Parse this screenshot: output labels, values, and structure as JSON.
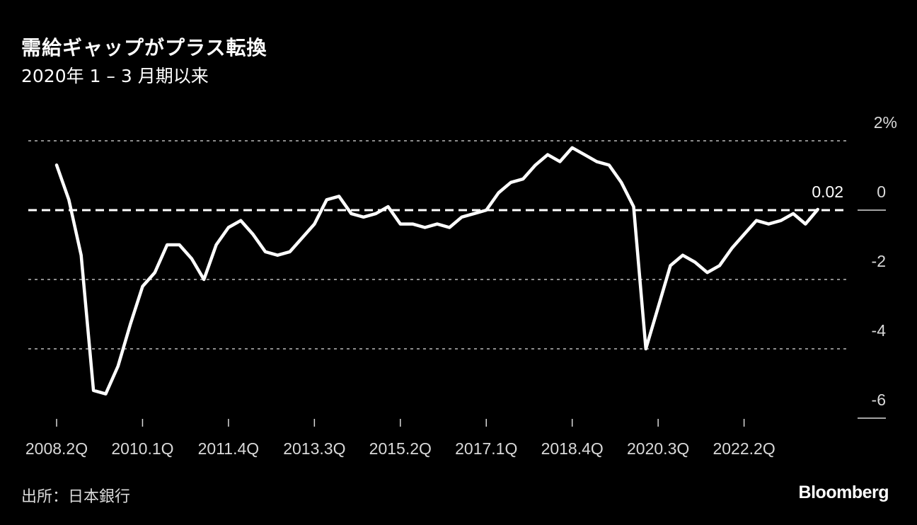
{
  "header": {
    "title": "需給ギャップがプラス転換",
    "subtitle": "2020年 1 – 3 月期以来"
  },
  "footer": {
    "source": "出所：日本銀行",
    "brand": "Bloomberg"
  },
  "colors": {
    "background": "#000000",
    "line": "#ffffff",
    "grid": "#8c8c8c",
    "label": "#d9d9d9"
  },
  "chart_data": {
    "type": "line",
    "title": "需給ギャップがプラス転換",
    "subtitle": "2020年 1 – 3 月期以来",
    "xlabel": "",
    "ylabel": "%",
    "ylim": [
      -6,
      2
    ],
    "yticks": [
      2,
      0,
      -2,
      -4,
      -6
    ],
    "ytick_labels": [
      "2%",
      "0",
      "-2",
      "-4",
      "-6"
    ],
    "xtick_labels": [
      "2008.2Q",
      "2010.1Q",
      "2011.4Q",
      "2013.3Q",
      "2015.2Q",
      "2017.1Q",
      "2018.4Q",
      "2020.3Q",
      "2022.2Q"
    ],
    "grid": true,
    "zero_line": "dashed",
    "annotation": {
      "label": "0.02",
      "value": 0.02,
      "x": "2023.4Q"
    },
    "series": [
      {
        "name": "需給ギャップ",
        "x": [
          "2008.2Q",
          "2008.3Q",
          "2008.4Q",
          "2009.1Q",
          "2009.2Q",
          "2009.3Q",
          "2009.4Q",
          "2010.1Q",
          "2010.2Q",
          "2010.3Q",
          "2010.4Q",
          "2011.1Q",
          "2011.2Q",
          "2011.3Q",
          "2011.4Q",
          "2012.1Q",
          "2012.2Q",
          "2012.3Q",
          "2012.4Q",
          "2013.1Q",
          "2013.2Q",
          "2013.3Q",
          "2013.4Q",
          "2014.1Q",
          "2014.2Q",
          "2014.3Q",
          "2014.4Q",
          "2015.1Q",
          "2015.2Q",
          "2015.3Q",
          "2015.4Q",
          "2016.1Q",
          "2016.2Q",
          "2016.3Q",
          "2016.4Q",
          "2017.1Q",
          "2017.2Q",
          "2017.3Q",
          "2017.4Q",
          "2018.1Q",
          "2018.2Q",
          "2018.3Q",
          "2018.4Q",
          "2019.1Q",
          "2019.2Q",
          "2019.3Q",
          "2019.4Q",
          "2020.1Q",
          "2020.2Q",
          "2020.3Q",
          "2020.4Q",
          "2021.1Q",
          "2021.2Q",
          "2021.3Q",
          "2021.4Q",
          "2022.1Q",
          "2022.2Q",
          "2022.3Q",
          "2022.4Q",
          "2023.1Q",
          "2023.2Q",
          "2023.3Q",
          "2023.4Q"
        ],
        "values": [
          1.3,
          0.3,
          -1.3,
          -5.2,
          -5.3,
          -4.5,
          -3.3,
          -2.2,
          -1.8,
          -1.0,
          -1.0,
          -1.4,
          -2.0,
          -1.0,
          -0.5,
          -0.3,
          -0.7,
          -1.2,
          -1.3,
          -1.2,
          -0.8,
          -0.4,
          0.3,
          0.4,
          -0.1,
          -0.2,
          -0.1,
          0.1,
          -0.4,
          -0.4,
          -0.5,
          -0.4,
          -0.5,
          -0.2,
          -0.1,
          0.0,
          0.5,
          0.8,
          0.9,
          1.3,
          1.6,
          1.4,
          1.8,
          1.6,
          1.4,
          1.3,
          0.8,
          0.1,
          -4.0,
          -2.8,
          -1.6,
          -1.3,
          -1.5,
          -1.8,
          -1.6,
          -1.1,
          -0.7,
          -0.3,
          -0.4,
          -0.3,
          -0.1,
          -0.4,
          0.02
        ]
      }
    ]
  }
}
